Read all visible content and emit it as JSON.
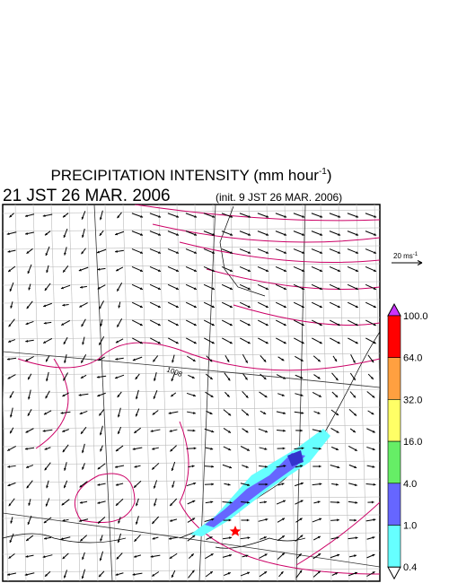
{
  "header": {
    "title": "PRECIPITATION INTENSITY (mm hour",
    "title_sup": "-1",
    "title_end": ")",
    "time": "21 JST 26 MAR. 2006",
    "init": "(init. 9 JST 26 MAR. 2006)"
  },
  "map": {
    "isobar_label": "1008"
  },
  "vector_legend": {
    "label": "20 ms",
    "sup": "-1"
  },
  "colorbar": {
    "labels": [
      "100.0",
      "64.0",
      "32.0",
      "16.0",
      "4.0",
      "1.0",
      "0.4"
    ],
    "colors": [
      "#cc33ff",
      "#ff0000",
      "#ffa040",
      "#ffff66",
      "#66ee66",
      "#6666ff",
      "#66ffff",
      "#ffffff"
    ]
  }
}
